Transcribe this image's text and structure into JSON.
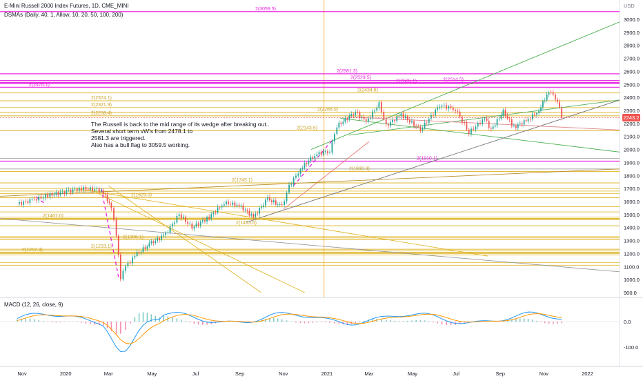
{
  "header": {
    "title": "E-Mini Russell 2000 Index Futures, 1D, CME_MINI",
    "indicator": "DSMAs (Daily, 40, 1, Allow, 10, 20, 50, 100, 200)",
    "currency": "USD",
    "macd_label": "MACD (12, 26, close, 9)"
  },
  "note": [
    "The Russell is back to the mid range of its wedge after breaking out..",
    "Several short term vW's from 2478.1 to",
    "2581.3 are triggered.",
    "Also has a bull flag to 3059.5 working."
  ],
  "last_price": "2243.2",
  "colors": {
    "magenta": "#e91ee0",
    "gold": "#e0b62c",
    "orange": "#f7a21b",
    "green": "#4caf50",
    "grey": "#9e9e9e",
    "red": "#ef5350",
    "up": "#26a69a",
    "down": "#ef5350"
  },
  "chart_data": [
    {
      "type": "candlestick",
      "price_axis": [
        "3000.0",
        "2900.0",
        "2800.0",
        "2700.0",
        "2600.0",
        "2500.0",
        "2400.0",
        "2300.0",
        "2200.0",
        "2100.0",
        "2000.0",
        "1900.0",
        "1800.0",
        "1700.0",
        "1600.0",
        "1500.0",
        "1400.0",
        "1300.0",
        "1200.0",
        "1100.0",
        "1000.0",
        "900.0"
      ],
      "time_axis": [
        "Nov",
        "2020",
        "Mar",
        "May",
        "Jul",
        "Sep",
        "Nov",
        "2021",
        "Mar",
        "May",
        "Jul",
        "Sep",
        "Nov",
        "2022"
      ],
      "ylim": [
        880,
        3100
      ],
      "close_path": [
        [
          "2019-10-25",
          1580
        ],
        [
          "2019-11-15",
          1610
        ],
        [
          "2019-12-10",
          1650
        ],
        [
          "2020-01-05",
          1680
        ],
        [
          "2020-01-20",
          1700
        ],
        [
          "2020-02-20",
          1690
        ],
        [
          "2020-03-05",
          1560
        ],
        [
          "2020-03-12",
          1350
        ],
        [
          "2020-03-18",
          1010
        ],
        [
          "2020-03-25",
          1100
        ],
        [
          "2020-04-10",
          1200
        ],
        [
          "2020-04-30",
          1280
        ],
        [
          "2020-05-20",
          1350
        ],
        [
          "2020-06-08",
          1500
        ],
        [
          "2020-06-26",
          1400
        ],
        [
          "2020-07-20",
          1480
        ],
        [
          "2020-08-10",
          1590
        ],
        [
          "2020-08-31",
          1570
        ],
        [
          "2020-09-20",
          1480
        ],
        [
          "2020-10-10",
          1620
        ],
        [
          "2020-10-30",
          1560
        ],
        [
          "2020-11-09",
          1720
        ],
        [
          "2020-11-25",
          1850
        ],
        [
          "2020-12-15",
          1960
        ],
        [
          "2021-01-05",
          1990
        ],
        [
          "2021-01-15",
          2180
        ],
        [
          "2021-02-10",
          2290
        ],
        [
          "2021-02-25",
          2210
        ],
        [
          "2021-03-15",
          2350
        ],
        [
          "2021-03-25",
          2180
        ],
        [
          "2021-04-15",
          2270
        ],
        [
          "2021-05-12",
          2150
        ],
        [
          "2021-06-08",
          2340
        ],
        [
          "2021-06-30",
          2310
        ],
        [
          "2021-07-19",
          2130
        ],
        [
          "2021-08-10",
          2240
        ],
        [
          "2021-08-19",
          2150
        ],
        [
          "2021-09-05",
          2290
        ],
        [
          "2021-09-20",
          2170
        ],
        [
          "2021-10-10",
          2230
        ],
        [
          "2021-10-25",
          2300
        ],
        [
          "2021-11-08",
          2450
        ],
        [
          "2021-11-20",
          2380
        ],
        [
          "2021-11-26",
          2243
        ]
      ],
      "horizontal_levels": [
        {
          "label": "2(3059.5)",
          "price": 3059.5,
          "color": "magenta"
        },
        {
          "label": "2(2581.3)",
          "price": 2581.3,
          "color": "magenta"
        },
        {
          "label": "2(2529.5)",
          "price": 2529.5,
          "color": "magenta"
        },
        {
          "label": "2(2505.1)",
          "price": 2505.1,
          "color": "magenta"
        },
        {
          "label": "2(2514.5)",
          "price": 2514.5,
          "color": "magenta"
        },
        {
          "label": "2(2478.1)",
          "price": 2478.1,
          "color": "magenta"
        },
        {
          "label": "2(2434.8)",
          "price": 2434.8,
          "color": "gold"
        },
        {
          "label": "2(2374.1)",
          "price": 2374.1,
          "color": "gold"
        },
        {
          "label": "2(2321.9)",
          "price": 2321.9,
          "color": "gold"
        },
        {
          "label": "2(2286.0)",
          "price": 2286.0,
          "color": "gold"
        },
        {
          "label": "2(2258.4)",
          "price": 2258.4,
          "color": "gold"
        },
        {
          "label": "2(2143.5)",
          "price": 2143.5,
          "color": "gold"
        },
        {
          "label": "2(1910.1)",
          "price": 1910.1,
          "color": "magenta"
        },
        {
          "label": "2(1830.3)",
          "price": 1830.3,
          "color": "gold"
        },
        {
          "label": "2(1743.1)",
          "price": 1743.1,
          "color": "gold"
        },
        {
          "label": "2(1629.0)",
          "price": 1629.0,
          "color": "gold"
        },
        {
          "label": "2(1467.0)",
          "price": 1467.0,
          "color": "gold"
        },
        {
          "label": "2(1413.6)",
          "price": 1413.6,
          "color": "gold"
        },
        {
          "label": "2(1306.1)",
          "price": 1306.1,
          "color": "gold"
        },
        {
          "label": "2(1233.1)",
          "price": 1233.1,
          "color": "gold"
        },
        {
          "label": "2(1207.4)",
          "price": 1207.4,
          "color": "gold"
        }
      ]
    },
    {
      "type": "line",
      "title": "MACD (12, 26, close, 9)",
      "y_axis": [
        "0.0",
        "-100.0"
      ],
      "ylim": [
        -150,
        60
      ]
    }
  ]
}
